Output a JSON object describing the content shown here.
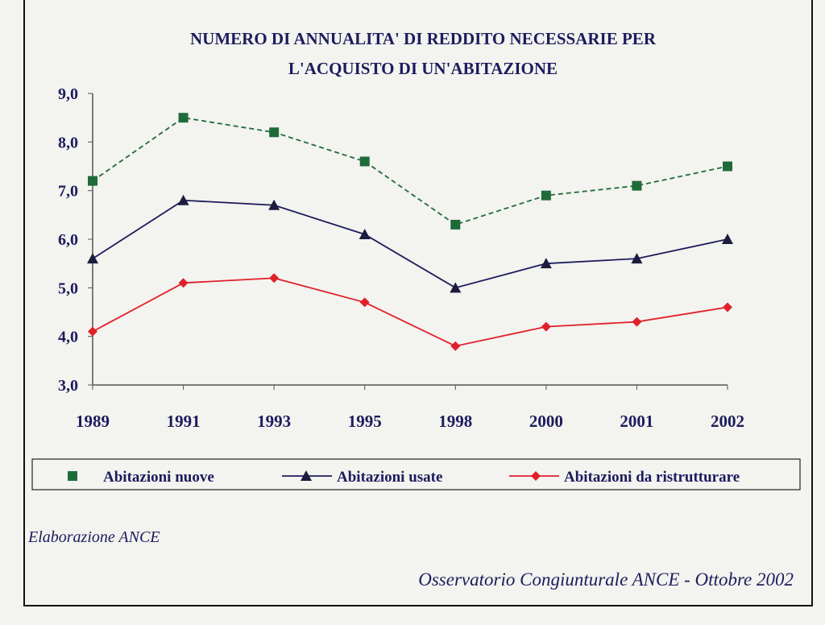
{
  "chart_data": {
    "type": "line",
    "title_lines": [
      "NUMERO DI ANNUALITA' DI REDDITO NECESSARIE PER",
      "L'ACQUISTO DI UN'ABITAZIONE"
    ],
    "categories": [
      "1989",
      "1991",
      "1993",
      "1995",
      "1998",
      "2000",
      "2001",
      "2002"
    ],
    "ylim": [
      3.0,
      9.0
    ],
    "yticks": [
      "3,0",
      "4,0",
      "5,0",
      "6,0",
      "7,0",
      "8,0",
      "9,0"
    ],
    "grid": false,
    "legend_position": "bottom",
    "series": [
      {
        "name": "Abitazioni nuove",
        "color": "#1e6b3a",
        "marker": "square",
        "dashed": true,
        "values": [
          7.2,
          8.5,
          8.2,
          7.6,
          6.3,
          6.9,
          7.1,
          7.5
        ]
      },
      {
        "name": "Abitazioni usate",
        "color": "#1c1c5e",
        "marker": "triangle",
        "dashed": false,
        "values": [
          5.6,
          6.8,
          6.7,
          6.1,
          5.0,
          5.5,
          5.6,
          6.0
        ]
      },
      {
        "name": "Abitazioni da ristrutturare",
        "color": "#e0212b",
        "marker": "diamond",
        "dashed": false,
        "values": [
          4.1,
          5.1,
          5.2,
          4.7,
          3.8,
          4.2,
          4.3,
          4.6
        ]
      }
    ]
  },
  "footer": {
    "source": "Elaborazione ANCE",
    "publication": "Osservatorio Congiunturale ANCE - Ottobre 2002"
  }
}
